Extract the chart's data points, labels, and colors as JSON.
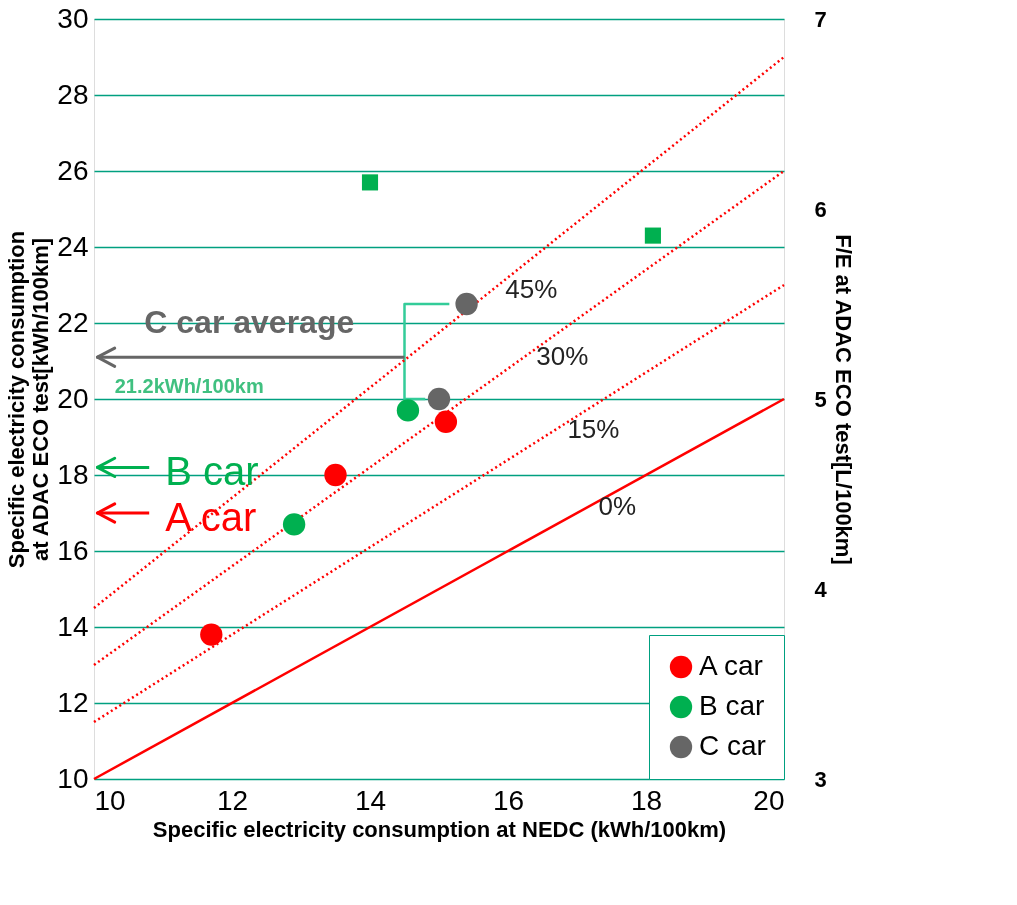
{
  "chart_data": {
    "type": "scatter",
    "xlabel": "Specific electricity consumption at NEDC (kWh/100km)",
    "ylabel": "Specific electricity consumption\nat ADAC ECO test[kWh/100km]",
    "y2label": "F/E at ADAC ECO test[L/100km]",
    "xlim": [
      10,
      20
    ],
    "xticks": [
      10,
      12,
      14,
      16,
      18,
      20
    ],
    "ylim": [
      10,
      30
    ],
    "yticks": [
      10,
      12,
      14,
      16,
      18,
      20,
      22,
      24,
      26,
      28,
      30
    ],
    "y2lim": [
      3,
      7
    ],
    "y2ticks": [
      3,
      4,
      5,
      6,
      7
    ],
    "grid": "y",
    "legend": "bottom right",
    "series": [
      {
        "name": "A car",
        "color": "#ff0000",
        "type": "scatter",
        "marker": "circle",
        "x": [
          11.7,
          13.5,
          15.1
        ],
        "values": [
          13.8,
          18.0,
          19.4
        ]
      },
      {
        "name": "B car",
        "color": "#00b050",
        "type": "scatter",
        "marker": "circle",
        "x": [
          12.9,
          14.55
        ],
        "values": [
          16.7,
          19.7
        ]
      },
      {
        "name": "C car",
        "color": "#666666",
        "type": "scatter",
        "marker": "circle",
        "x": [
          15.0,
          15.4
        ],
        "values": [
          20.0,
          22.5
        ]
      },
      {
        "color": "#00b050",
        "type": "scatter",
        "marker": "square",
        "x": [
          14.0,
          18.1
        ],
        "values": [
          25.7,
          24.3
        ]
      },
      {
        "color": "#33cc99",
        "type": "line",
        "line_style": "solid",
        "x": [
          15.15,
          14.5,
          14.5,
          14.8
        ],
        "values": [
          22.5,
          22.5,
          20.0,
          20.0
        ]
      },
      {
        "color": "#ff0000",
        "type": "line",
        "line_style": "solid",
        "x": [
          10,
          20
        ],
        "values": [
          10,
          20
        ]
      },
      {
        "color": "#ff0000",
        "type": "line",
        "line_style": "dotted",
        "x": [
          10,
          20
        ],
        "values": [
          11.5,
          23
        ]
      },
      {
        "color": "#ff0000",
        "type": "line",
        "line_style": "dotted",
        "x": [
          10,
          20
        ],
        "values": [
          13,
          26
        ]
      },
      {
        "color": "#ff0000",
        "type": "line",
        "line_style": "dotted",
        "x": [
          10,
          20
        ],
        "values": [
          14.5,
          29
        ]
      }
    ],
    "ref_lines": [
      {
        "axis": "y",
        "value": 21.1,
        "label": "C car  average",
        "color": "#666666"
      },
      {
        "axis": "y",
        "value": 18.2,
        "label": "B car",
        "color": "#00b050"
      },
      {
        "axis": "y",
        "value": 17.0,
        "label": "A car",
        "color": "#ff0000"
      }
    ],
    "annotations": [
      "45%",
      "30%",
      "15%",
      "0%",
      "21.2kWh/100km"
    ]
  }
}
